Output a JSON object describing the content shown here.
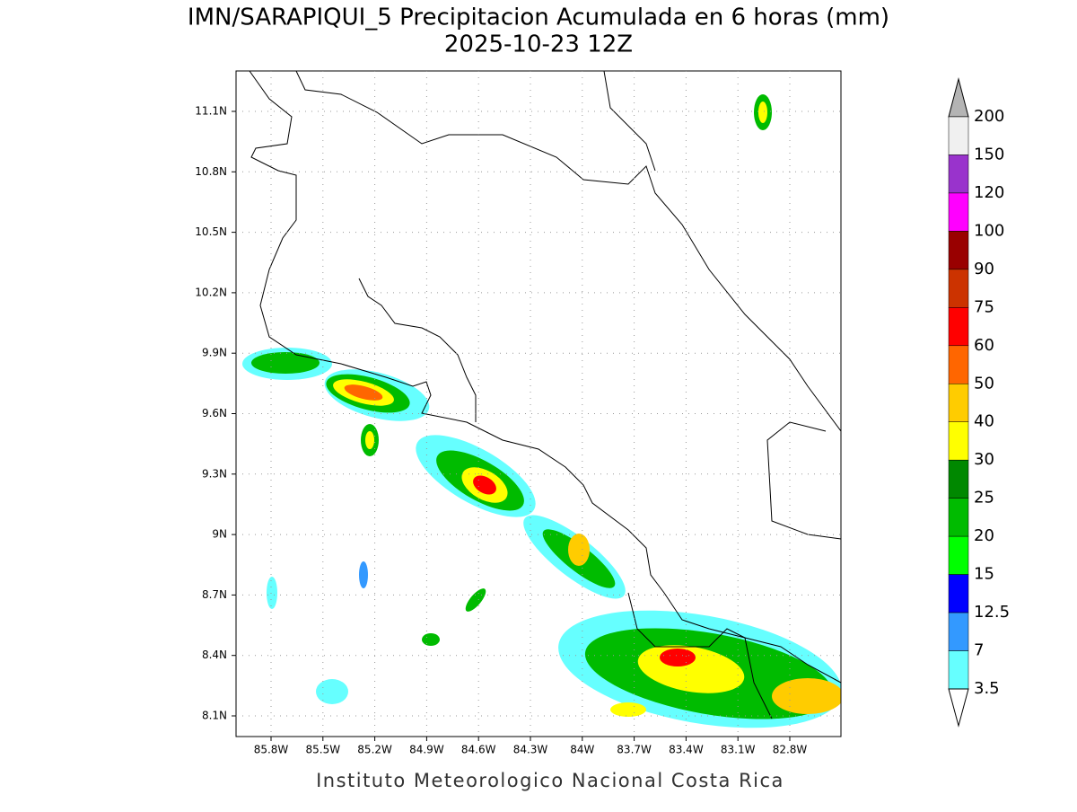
{
  "title": "IMN/SARAPIQUI_5 Precipitacion Acumulada en 6 horas (mm)",
  "subtitle": "2025-10-23 12Z",
  "map": {
    "lat_ticks": [
      "11.1N",
      "10.8N",
      "10.5N",
      "10.2N",
      "9.9N",
      "9.6N",
      "9.3N",
      "9N",
      "8.7N",
      "8.4N",
      "8.1N"
    ],
    "lon_ticks": [
      "85.8W",
      "85.5W",
      "85.2W",
      "84.9W",
      "84.6W",
      "84.3W",
      "84W",
      "83.7W",
      "83.4W",
      "83.1W",
      "82.8W"
    ]
  },
  "colorbar": {
    "above_color": "#b4b4b4",
    "below_color": "#ffffff",
    "labels": [
      "200",
      "150",
      "120",
      "100",
      "90",
      "75",
      "60",
      "50",
      "40",
      "30",
      "25",
      "20",
      "15",
      "12.5",
      "7",
      "3.5"
    ],
    "colors": [
      "#f0f0f0",
      "#9933cc",
      "#ff00ff",
      "#990000",
      "#cc3300",
      "#ff0000",
      "#ff6600",
      "#ffcc00",
      "#ffff00",
      "#008800",
      "#00bb00",
      "#00ff00",
      "#0000ff",
      "#3399ff",
      "#66ffff"
    ]
  },
  "footer": "Instituto Meteorologico Nacional Costa Rica"
}
